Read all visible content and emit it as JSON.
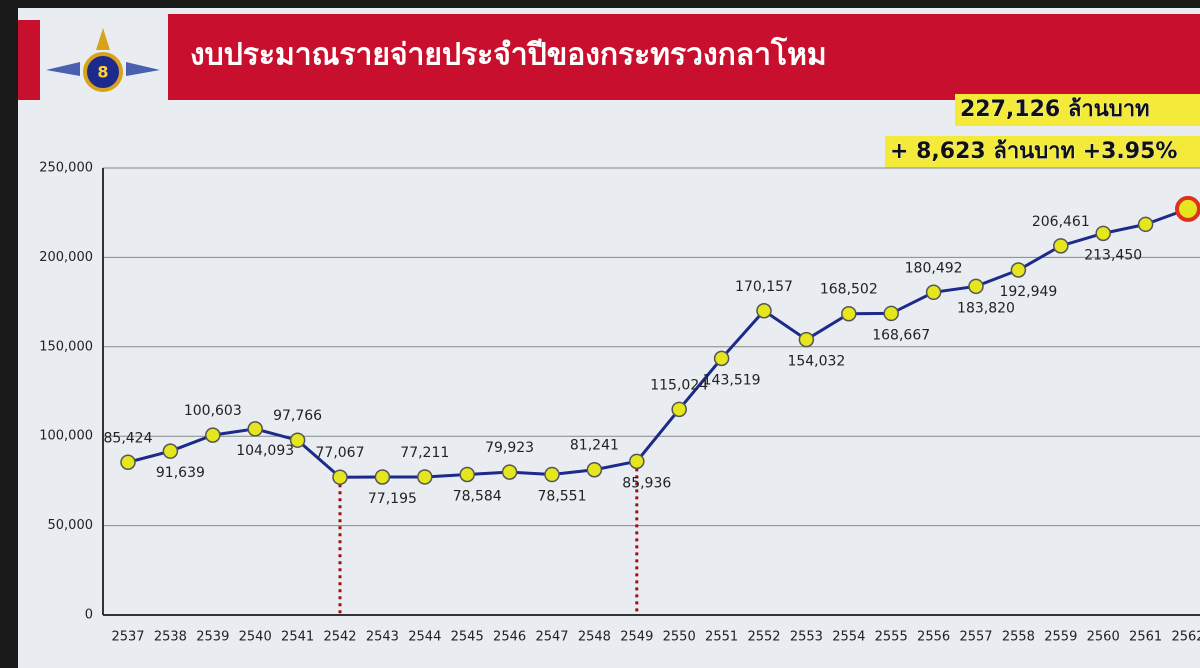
{
  "chart_data": {
    "type": "line",
    "title": "งบประมาณรายจ่ายประจำปีของกระทรวงกลาโหม",
    "annotations": [
      "227,126 ล้านบาท",
      "+ 8,623 ล้านบาท +3.95%"
    ],
    "categories": [
      "2537",
      "2538",
      "2539",
      "2540",
      "2541",
      "2542",
      "2543",
      "2544",
      "2545",
      "2546",
      "2547",
      "2548",
      "2549",
      "2550",
      "2551",
      "2552",
      "2553",
      "2554",
      "2555",
      "2556",
      "2557",
      "2558",
      "2559",
      "2560",
      "2561",
      "2562"
    ],
    "series": [
      {
        "color": "#1c2a8c",
        "marker_color": "#e6e61e",
        "values": [
          85424,
          91639,
          100603,
          104093,
          97766,
          77067,
          77195,
          77211,
          78584,
          79923,
          78551,
          81241,
          85936,
          115024,
          143519,
          170157,
          154032,
          168502,
          168667,
          180492,
          183820,
          192949,
          206461,
          213450,
          218503,
          227126
        ],
        "value_labels": [
          "85,424",
          "91,639",
          "100,603",
          "104,093",
          "97,766",
          "77,067",
          "77,195",
          "77,211",
          "78,584",
          "79,923",
          "78,551",
          "81,241",
          "85,936",
          "115,024",
          "143,519",
          "170,157",
          "154,032",
          "168,502",
          "168,667",
          "180,492",
          "183,820",
          "192,949",
          "206,461",
          "213,450",
          null,
          null
        ]
      }
    ],
    "ylim": [
      0,
      250000
    ],
    "yticks": [
      0,
      {
        "value": 50000,
        "label": "50,000"
      },
      {
        "value": 100000,
        "label": "100,000"
      },
      {
        "value": 150000,
        "label": "150,000"
      },
      {
        "value": 200000,
        "label": "200,000"
      },
      {
        "value": 250000,
        "label": "250,000"
      }
    ],
    "grid": true
  }
}
